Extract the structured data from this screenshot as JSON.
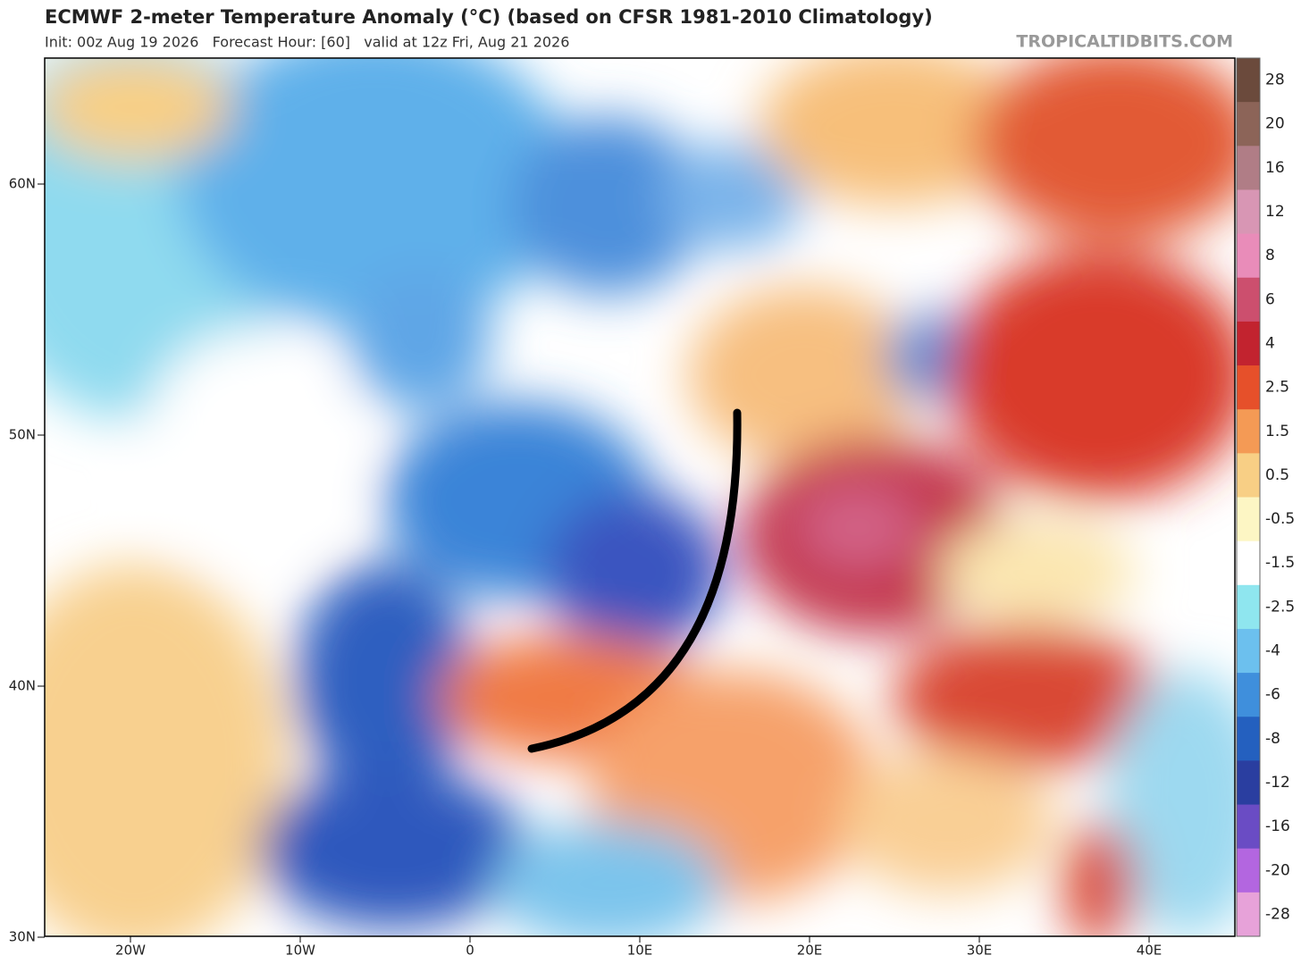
{
  "header": {
    "title": "ECMWF 2-meter Temperature Anomaly (°C) (based on CFSR 1981-2010 Climatology)",
    "subtitle": "Init: 00z Aug 19 2026   Forecast Hour: [60]   valid at 12z Fri, Aug 21 2026",
    "source": "TROPICALTIDBITS.COM"
  },
  "axes": {
    "lat_labels": [
      "60N",
      "50N",
      "40N",
      "30N"
    ],
    "lon_labels": [
      "20W",
      "10W",
      "0",
      "10E",
      "20E",
      "30E",
      "40E"
    ]
  },
  "colorbar": {
    "labels": [
      "28",
      "20",
      "16",
      "12",
      "8",
      "6",
      "4",
      "2.5",
      "1.5",
      "0.5",
      "-0.5",
      "-1.5",
      "-2.5",
      "-4",
      "-6",
      "-8",
      "-12",
      "-16",
      "-20",
      "-28"
    ],
    "colors": [
      "#6b4a3c",
      "#8c6458",
      "#b07d86",
      "#d896b4",
      "#e98cb9",
      "#cc4f6e",
      "#c2232f",
      "#e6502a",
      "#f49a55",
      "#f8cf85",
      "#fdf6c4",
      "#ffffff",
      "#8fe6ef",
      "#6cc0ee",
      "#3f8fdc",
      "#2460bf",
      "#2a3ea0",
      "#6a4cc4",
      "#b366e0",
      "#e7a2d9"
    ]
  }
}
